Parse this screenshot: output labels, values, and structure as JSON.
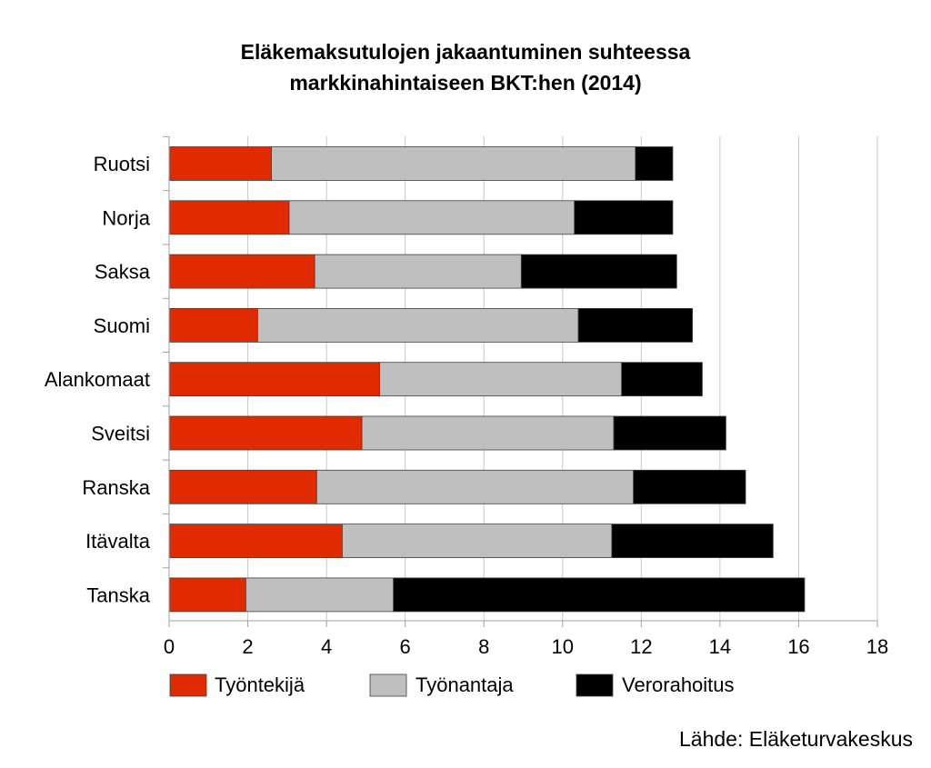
{
  "chart_data": {
    "type": "bar",
    "orientation": "horizontal",
    "stacked": true,
    "title_lines": [
      "Eläkemaksutulojen jakaantuminen suhteessa",
      "markkinahintaiseen BKT:hen (2014)"
    ],
    "categories": [
      "Ruotsi",
      "Norja",
      "Saksa",
      "Suomi",
      "Alankomaat",
      "Sveitsi",
      "Ranska",
      "Itävalta",
      "Tanska"
    ],
    "series": [
      {
        "name": "Työntekijä",
        "color": "#e02a00",
        "values": [
          2.6,
          3.05,
          3.7,
          2.25,
          5.35,
          4.9,
          3.75,
          4.4,
          1.95
        ]
      },
      {
        "name": "Työnantaja",
        "color": "#bfbfbf",
        "values": [
          9.25,
          7.25,
          5.25,
          8.15,
          6.15,
          6.4,
          8.05,
          6.85,
          3.75
        ]
      },
      {
        "name": "Verorahoitus",
        "color": "#000000",
        "values": [
          0.95,
          2.5,
          3.95,
          2.9,
          2.05,
          2.85,
          2.85,
          4.1,
          10.45
        ]
      }
    ],
    "xlim": [
      0,
      18
    ],
    "xticks": [
      "0",
      "2",
      "4",
      "6",
      "8",
      "10",
      "12",
      "14",
      "16",
      "18"
    ],
    "grid": "vertical",
    "legend_position": "bottom"
  },
  "source_note": "Lähde: Eläketurvakeskus"
}
